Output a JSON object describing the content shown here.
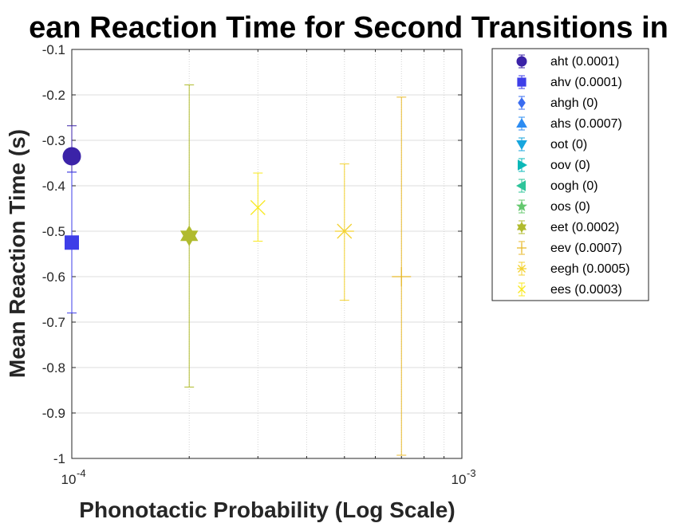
{
  "chart_data": {
    "type": "scatter",
    "title": "ean Reaction Time for Second Transitions in",
    "xlabel": "Phonotactic Probability (Log Scale)",
    "ylabel": "Mean Reaction Time (s)",
    "xscale": "log",
    "xlim": [
      0.0001,
      0.001
    ],
    "ylim": [
      -1,
      -0.1
    ],
    "yticks": [
      -1,
      -0.9,
      -0.8,
      -0.7,
      -0.6,
      -0.5,
      -0.4,
      -0.3,
      -0.2,
      -0.1
    ],
    "ytick_labels": [
      "-1",
      "-0.9",
      "-0.8",
      "-0.7",
      "-0.6",
      "-0.5",
      "-0.4",
      "-0.3",
      "-0.2",
      "-0.1"
    ],
    "xtick_labels": [
      {
        "base": "10",
        "exp": "-4"
      },
      {
        "base": "10",
        "exp": "-3"
      }
    ],
    "grid": true,
    "legend_position": "outside-right",
    "series": [
      {
        "name": "aht (0.0001)",
        "marker": "circle",
        "color": "#3b23a8",
        "x": 0.0001,
        "y": -0.335,
        "err_low": -0.37,
        "err_high": -0.268,
        "size": 11
      },
      {
        "name": "ahv (0.0001)",
        "marker": "square",
        "color": "#3e3ee8",
        "x": 0.0001,
        "y": -0.525,
        "err_low": -0.68,
        "err_high": -0.37,
        "size": 10
      },
      {
        "name": "ahgh (0)",
        "marker": "diamond",
        "color": "#3a6cf0"
      },
      {
        "name": "ahs (0.0007)",
        "marker": "triangle-up",
        "color": "#2c8cf2"
      },
      {
        "name": "oot (0)",
        "marker": "triangle-down",
        "color": "#17a6de"
      },
      {
        "name": "oov (0)",
        "marker": "triangle-right",
        "color": "#0ab8b8"
      },
      {
        "name": "oogh (0)",
        "marker": "triangle-left",
        "color": "#2ec49a"
      },
      {
        "name": "oos (0)",
        "marker": "star",
        "color": "#64c86e"
      },
      {
        "name": "eet (0.0002)",
        "marker": "hexagram",
        "color": "#b0bb2e",
        "x": 0.0002,
        "y": -0.51,
        "err_low": -0.843,
        "err_high": -0.178,
        "size": 12
      },
      {
        "name": "eev (0.0007)",
        "marker": "plus",
        "color": "#e8ba2c",
        "x": 0.0007,
        "y": -0.6,
        "err_low": -0.993,
        "err_high": -0.205,
        "size": 12
      },
      {
        "name": "eegh (0.0005)",
        "marker": "asterisk",
        "color": "#f3d230",
        "x": 0.0005,
        "y": -0.5,
        "err_low": -0.652,
        "err_high": -0.352,
        "size": 12
      },
      {
        "name": "ees (0.0003)",
        "marker": "x",
        "color": "#f8e820",
        "x": 0.0003,
        "y": -0.448,
        "err_low": -0.522,
        "err_high": -0.372,
        "size": 12
      }
    ]
  }
}
